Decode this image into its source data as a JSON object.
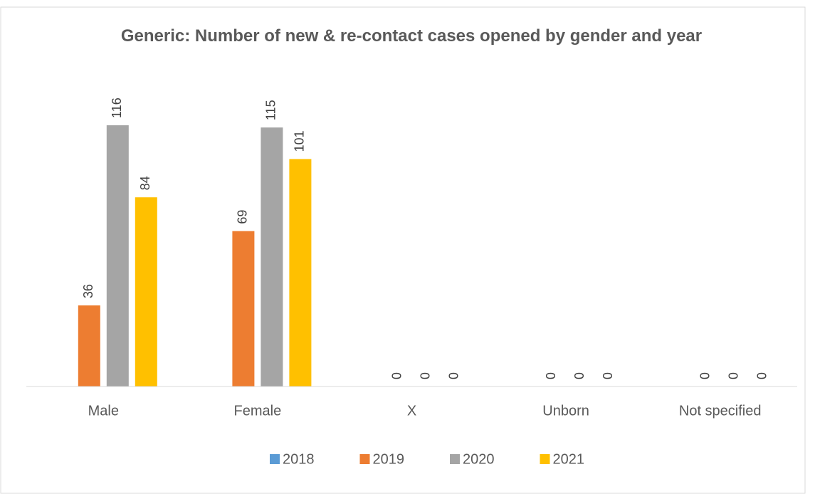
{
  "chart_data": {
    "type": "bar",
    "title": "Generic: Number of new & re-contact cases opened by gender and year",
    "categories": [
      "Male",
      "Female",
      "X",
      "Unborn",
      "Not specified"
    ],
    "series": [
      {
        "name": "2018",
        "color": "#5b9bd5",
        "values": [
          null,
          null,
          null,
          null,
          null
        ]
      },
      {
        "name": "2019",
        "color": "#ed7d31",
        "values": [
          36,
          69,
          0,
          0,
          0
        ]
      },
      {
        "name": "2020",
        "color": "#a5a5a5",
        "values": [
          116,
          115,
          0,
          0,
          0
        ]
      },
      {
        "name": "2021",
        "color": "#ffc000",
        "values": [
          84,
          101,
          0,
          0,
          0
        ]
      }
    ],
    "ylim": [
      0,
      140
    ],
    "legend": "bottom"
  }
}
